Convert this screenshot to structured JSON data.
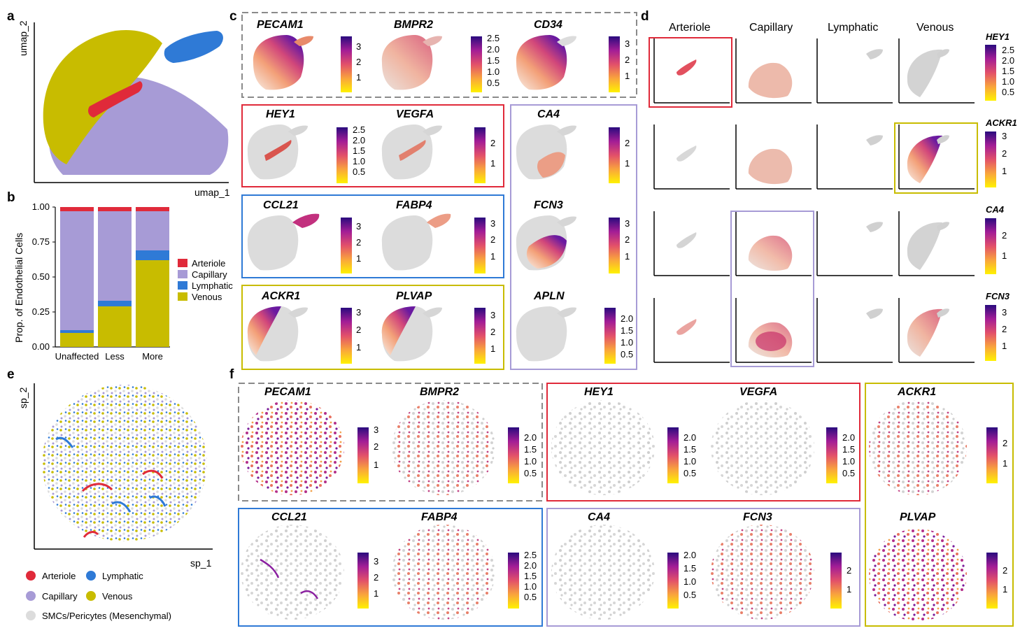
{
  "colors": {
    "arteriole": "#e02a3a",
    "capillary": "#a79bd6",
    "lymphatic": "#2f7ad6",
    "venous": "#c8bc00",
    "mesenchymal": "#dcdcdc",
    "gray_box": "#8a8a8a"
  },
  "panels": {
    "a": {
      "label": "a",
      "xlabel": "umap_1",
      "ylabel": "umap_2"
    },
    "b": {
      "label": "b",
      "legend": [
        "Arteriole",
        "Capillary",
        "Lymphatic",
        "Venous"
      ]
    },
    "c": {
      "label": "c",
      "boxes": [
        {
          "genes": [
            "PECAM1",
            "BMPR2",
            "CD34"
          ],
          "ticks": [
            [
              "3",
              "2",
              "1"
            ],
            [
              "2.5",
              "2.0",
              "1.5",
              "1.0",
              "0.5"
            ],
            [
              "3",
              "2",
              "1"
            ]
          ]
        },
        {
          "genes": [
            "HEY1",
            "VEGFA"
          ],
          "ticks": [
            [
              "2.5",
              "2.0",
              "1.5",
              "1.0",
              "0.5"
            ],
            [
              "2",
              "1"
            ]
          ]
        },
        {
          "genes": [
            "CCL21",
            "FABP4"
          ],
          "ticks": [
            [
              "3",
              "2",
              "1"
            ],
            [
              "3",
              "2",
              "1"
            ]
          ]
        },
        {
          "genes": [
            "ACKR1",
            "PLVAP"
          ],
          "ticks": [
            [
              "3",
              "2",
              "1"
            ],
            [
              "3",
              "2",
              "1"
            ]
          ]
        },
        {
          "genes": [
            "CA4",
            "FCN3",
            "APLN"
          ],
          "ticks": [
            [
              "2",
              "1"
            ],
            [
              "3",
              "2",
              "1"
            ],
            [
              "2.0",
              "1.5",
              "1.0",
              "0.5"
            ]
          ]
        }
      ]
    },
    "d": {
      "label": "d",
      "columns": [
        "Arteriole",
        "Capillary",
        "Lymphatic",
        "Venous"
      ],
      "rows": [
        {
          "gene": "HEY1",
          "ticks": [
            "2.5",
            "2.0",
            "1.5",
            "1.0",
            "0.5"
          ]
        },
        {
          "gene": "ACKR1",
          "ticks": [
            "3",
            "2",
            "1"
          ]
        },
        {
          "gene": "CA4",
          "ticks": [
            "2",
            "1"
          ]
        },
        {
          "gene": "FCN3",
          "ticks": [
            "3",
            "2",
            "1"
          ]
        }
      ]
    },
    "e": {
      "label": "e",
      "xlabel": "sp_1",
      "ylabel": "sp_2",
      "legend": [
        "Arteriole",
        "Lymphatic",
        "Capillary",
        "Venous",
        "SMCs/Pericytes (Mesenchymal)"
      ]
    },
    "f": {
      "label": "f",
      "boxes": [
        {
          "genes": [
            "PECAM1",
            "BMPR2"
          ],
          "ticks": [
            [
              "3",
              "2",
              "1"
            ],
            [
              "2.0",
              "1.5",
              "1.0",
              "0.5"
            ]
          ]
        },
        {
          "genes": [
            "HEY1",
            "VEGFA"
          ],
          "ticks": [
            [
              "2.0",
              "1.5",
              "1.0",
              "0.5"
            ],
            [
              "2.0",
              "1.5",
              "1.0",
              "0.5"
            ]
          ]
        },
        {
          "genes": [
            "ACKR1",
            "PLVAP"
          ],
          "ticks": [
            [
              "2",
              "1"
            ],
            [
              "2",
              "1"
            ]
          ]
        },
        {
          "genes": [
            "CCL21",
            "FABP4"
          ],
          "ticks": [
            [
              "3",
              "2",
              "1"
            ],
            [
              "2.5",
              "2.0",
              "1.5",
              "1.0",
              "0.5"
            ]
          ]
        },
        {
          "genes": [
            "CA4",
            "FCN3"
          ],
          "ticks": [
            [
              "2.0",
              "1.5",
              "1.0",
              "0.5"
            ],
            [
              "2",
              "1"
            ]
          ]
        }
      ]
    }
  },
  "chart_data": {
    "type": "bar",
    "stacked": true,
    "categories": [
      "Unaffected",
      "Less",
      "More"
    ],
    "series": [
      {
        "name": "Venous",
        "values": [
          0.1,
          0.29,
          0.62
        ]
      },
      {
        "name": "Lymphatic",
        "values": [
          0.02,
          0.04,
          0.07
        ]
      },
      {
        "name": "Capillary",
        "values": [
          0.85,
          0.64,
          0.28
        ]
      },
      {
        "name": "Arteriole",
        "values": [
          0.03,
          0.03,
          0.03
        ]
      }
    ],
    "ylabel": "Prop. of Endothelial Cells",
    "ylim": [
      0,
      1
    ],
    "yticks": [
      "0.00",
      "0.25",
      "0.50",
      "0.75",
      "1.00"
    ],
    "legend_position": "right"
  }
}
